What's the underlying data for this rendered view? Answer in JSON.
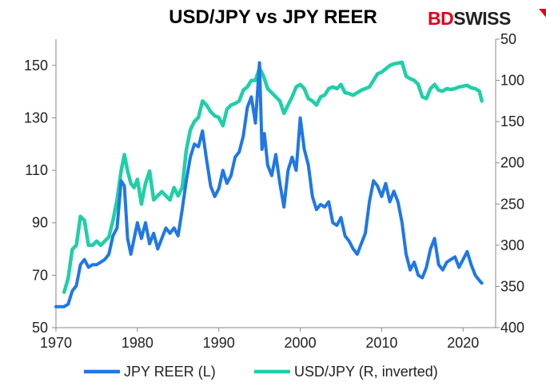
{
  "title": "USD/JPY vs JPY REER",
  "brand": {
    "part1": "BD",
    "part2": "SWISS",
    "color1": "#e3001b",
    "color2": "#222222"
  },
  "chart_data": {
    "type": "line",
    "title": "USD/JPY vs JPY REER",
    "grid": false,
    "legend_placement": "bottom",
    "x_ticks": [
      "1970",
      "1980",
      "1990",
      "2000",
      "2010",
      "2020"
    ],
    "x_range": [
      1970,
      2024
    ],
    "y_left": {
      "label": "",
      "range": [
        50,
        160
      ],
      "ticks": [
        "50",
        "70",
        "90",
        "110",
        "130",
        "150"
      ]
    },
    "y_right": {
      "label": "",
      "range": [
        400,
        50
      ],
      "inverted": true,
      "ticks": [
        "50",
        "100",
        "150",
        "200",
        "250",
        "300",
        "350",
        "400"
      ]
    },
    "series": [
      {
        "name": "JPY REER (L)",
        "axis": "left",
        "color": "#1f77e8",
        "x": [
          1970.0,
          1971.0,
          1971.5,
          1972.0,
          1972.5,
          1973.0,
          1973.5,
          1974.0,
          1974.5,
          1975.0,
          1975.5,
          1976.0,
          1976.5,
          1977.0,
          1977.5,
          1978.0,
          1978.4,
          1978.8,
          1979.2,
          1979.6,
          1980.0,
          1980.5,
          1981.0,
          1981.5,
          1982.0,
          1982.5,
          1983.0,
          1983.5,
          1984.0,
          1984.5,
          1985.0,
          1985.5,
          1986.0,
          1986.5,
          1987.0,
          1987.5,
          1988.0,
          1988.5,
          1989.0,
          1989.5,
          1990.0,
          1990.5,
          1991.0,
          1991.5,
          1992.0,
          1992.5,
          1993.0,
          1993.5,
          1994.0,
          1994.5,
          1995.0,
          1995.3,
          1995.6,
          1996.0,
          1996.5,
          1997.0,
          1997.5,
          1998.0,
          1998.5,
          1999.0,
          1999.5,
          2000.0,
          2000.5,
          2001.0,
          2001.5,
          2002.0,
          2002.5,
          2003.0,
          2003.5,
          2004.0,
          2004.5,
          2005.0,
          2005.5,
          2006.0,
          2006.5,
          2007.0,
          2007.5,
          2008.0,
          2008.5,
          2009.0,
          2009.5,
          2010.0,
          2010.5,
          2011.0,
          2011.5,
          2012.0,
          2012.5,
          2013.0,
          2013.5,
          2014.0,
          2014.5,
          2015.0,
          2015.5,
          2016.0,
          2016.5,
          2017.0,
          2017.5,
          2018.0,
          2018.5,
          2019.0,
          2019.5,
          2020.0,
          2020.5,
          2021.0,
          2021.5,
          2022.0,
          2022.3
        ],
        "values": [
          58,
          58,
          59,
          64,
          66,
          74,
          76,
          73,
          74,
          74,
          75,
          76,
          78,
          85,
          88,
          106,
          104,
          84,
          78,
          84,
          90,
          84,
          90,
          82,
          86,
          80,
          84,
          88,
          86,
          88,
          85,
          95,
          106,
          115,
          120,
          119,
          125,
          114,
          104,
          100,
          103,
          110,
          105,
          108,
          115,
          117,
          123,
          134,
          138,
          128,
          151,
          118,
          124,
          112,
          108,
          116,
          105,
          96,
          110,
          115,
          110,
          130,
          118,
          112,
          100,
          95,
          97,
          96,
          98,
          90,
          89,
          92,
          85,
          83,
          80,
          78,
          82,
          86,
          98,
          106,
          104,
          100,
          105,
          98,
          102,
          98,
          90,
          78,
          72,
          75,
          70,
          69,
          73,
          80,
          84,
          74,
          72,
          75,
          76,
          77,
          73,
          76,
          79,
          74,
          70,
          68,
          67
        ]
      },
      {
        "name": "USD/JPY (R, inverted)",
        "axis": "right",
        "color": "#1fcfa8",
        "x": [
          1971.0,
          1971.5,
          1972.0,
          1972.5,
          1973.0,
          1973.5,
          1974.0,
          1974.5,
          1975.0,
          1975.5,
          1976.0,
          1976.5,
          1977.0,
          1977.5,
          1978.0,
          1978.4,
          1978.8,
          1979.2,
          1979.6,
          1980.0,
          1980.5,
          1981.0,
          1981.5,
          1982.0,
          1982.5,
          1983.0,
          1983.5,
          1984.0,
          1984.5,
          1985.0,
          1985.5,
          1986.0,
          1986.5,
          1987.0,
          1987.5,
          1988.0,
          1988.5,
          1989.0,
          1989.5,
          1990.0,
          1990.5,
          1991.0,
          1991.5,
          1992.0,
          1992.5,
          1993.0,
          1993.5,
          1994.0,
          1994.5,
          1995.0,
          1995.5,
          1996.0,
          1996.5,
          1997.0,
          1997.5,
          1998.0,
          1998.5,
          1999.0,
          1999.5,
          2000.0,
          2000.5,
          2001.0,
          2001.5,
          2002.0,
          2002.5,
          2003.0,
          2003.5,
          2004.0,
          2004.5,
          2005.0,
          2005.5,
          2006.0,
          2006.5,
          2007.0,
          2007.5,
          2008.0,
          2008.5,
          2009.0,
          2009.5,
          2010.0,
          2010.5,
          2011.0,
          2011.5,
          2012.0,
          2012.5,
          2013.0,
          2013.5,
          2014.0,
          2014.5,
          2015.0,
          2015.5,
          2016.0,
          2016.5,
          2017.0,
          2017.5,
          2018.0,
          2018.5,
          2019.0,
          2019.5,
          2020.0,
          2020.5,
          2021.0,
          2021.5,
          2022.0,
          2022.3
        ],
        "values": [
          357,
          340,
          305,
          300,
          265,
          270,
          300,
          300,
          295,
          300,
          295,
          290,
          270,
          245,
          210,
          190,
          210,
          225,
          230,
          220,
          250,
          225,
          210,
          245,
          240,
          235,
          240,
          245,
          230,
          240,
          230,
          185,
          160,
          150,
          145,
          125,
          130,
          138,
          143,
          145,
          155,
          135,
          130,
          128,
          125,
          112,
          108,
          100,
          100,
          85,
          95,
          110,
          115,
          120,
          125,
          140,
          130,
          120,
          108,
          105,
          110,
          122,
          125,
          130,
          120,
          118,
          110,
          108,
          110,
          105,
          115,
          116,
          118,
          115,
          112,
          110,
          108,
          100,
          92,
          90,
          86,
          82,
          80,
          79,
          78,
          95,
          98,
          100,
          105,
          120,
          122,
          110,
          105,
          112,
          113,
          110,
          111,
          110,
          108,
          107,
          106,
          109,
          110,
          113,
          125
        ]
      }
    ]
  }
}
